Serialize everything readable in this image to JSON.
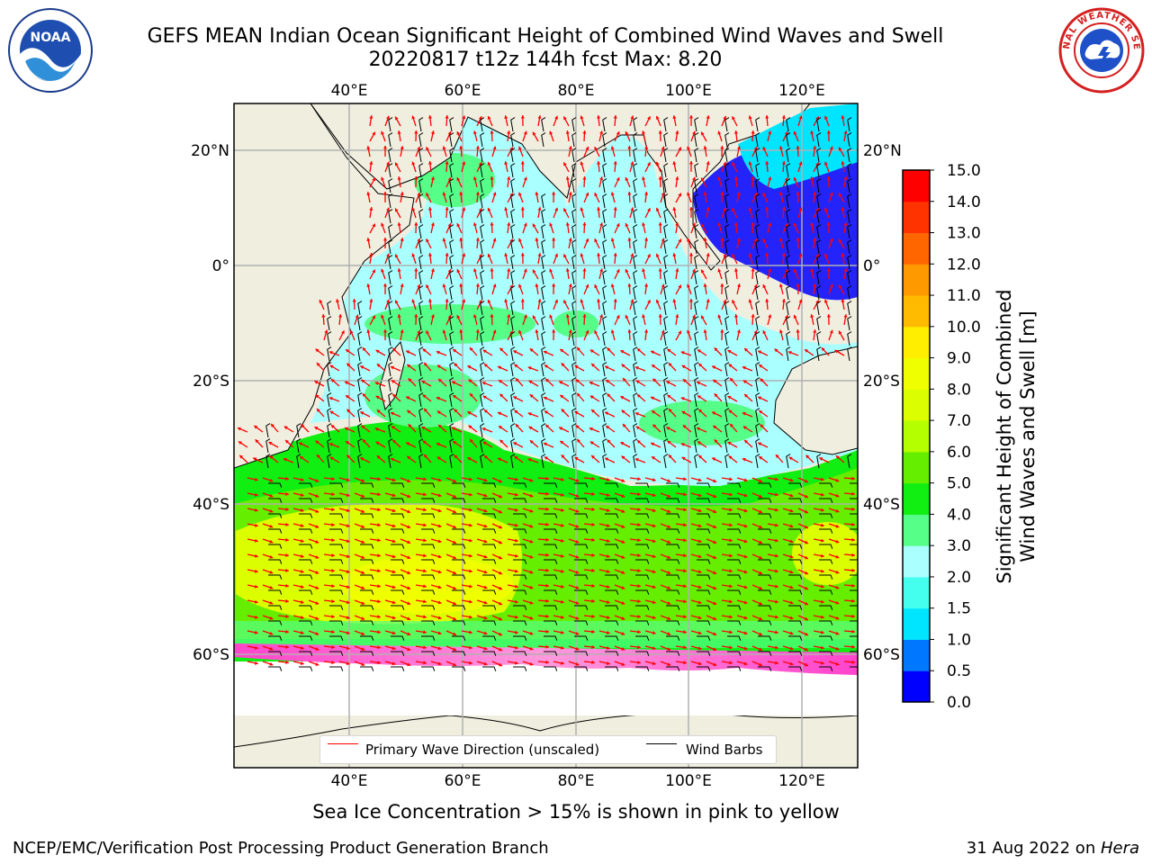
{
  "title_line1": "GEFS MEAN Indian Ocean Significant Height of Combined Wind Waves and Swell",
  "title_line2": "20220817 t12z 144h fcst   Max: 8.20",
  "note": "Sea Ice Concentration > 15% is shown in pink to yellow",
  "footer_left": "NCEP/EMC/Verification Post Processing Product Generation Branch",
  "footer_right_date": "31 Aug 2022 on ",
  "footer_right_host": "Hera",
  "legend": {
    "wave_label": "Primary Wave Direction (unscaled)",
    "wave_color": "#ff0000",
    "wind_label": "Wind Barbs",
    "wind_color": "#000000"
  },
  "map": {
    "lon_ticks": [
      "40°E",
      "60°E",
      "80°E",
      "100°E",
      "120°E"
    ],
    "lat_ticks_left": [
      "20°N",
      "0°",
      "20°S",
      "40°S",
      "60°S"
    ],
    "lat_ticks_right": [
      "20°N",
      "0°",
      "20°S",
      "40°S",
      "60°S"
    ],
    "land_color": "#efeedf",
    "ice_colors": [
      "#ff44cc",
      "#ff9900",
      "#ffee33"
    ]
  },
  "colorbar": {
    "title_line1": "Significant Height of Combined",
    "title_line2": "Wind Waves and Swell [m]",
    "ticks": [
      "0.0",
      "0.5",
      "1.0",
      "1.5",
      "2.0",
      "3.0",
      "4.0",
      "5.0",
      "6.0",
      "7.0",
      "8.0",
      "9.0",
      "10.0",
      "11.0",
      "12.0",
      "13.0",
      "14.0",
      "15.0"
    ],
    "colors": [
      "#0000ff",
      "#0077ff",
      "#00e5ff",
      "#44ffee",
      "#aaffff",
      "#55ff88",
      "#11ee11",
      "#66ee00",
      "#b4ff00",
      "#dcff00",
      "#f0ff00",
      "#ffee00",
      "#ffbb00",
      "#ff9900",
      "#ff6600",
      "#ff3300",
      "#ff0000"
    ]
  },
  "logos": {
    "noaa_text": "NOAA",
    "nws_text": "NATIONAL WEATHER SERVICE"
  }
}
